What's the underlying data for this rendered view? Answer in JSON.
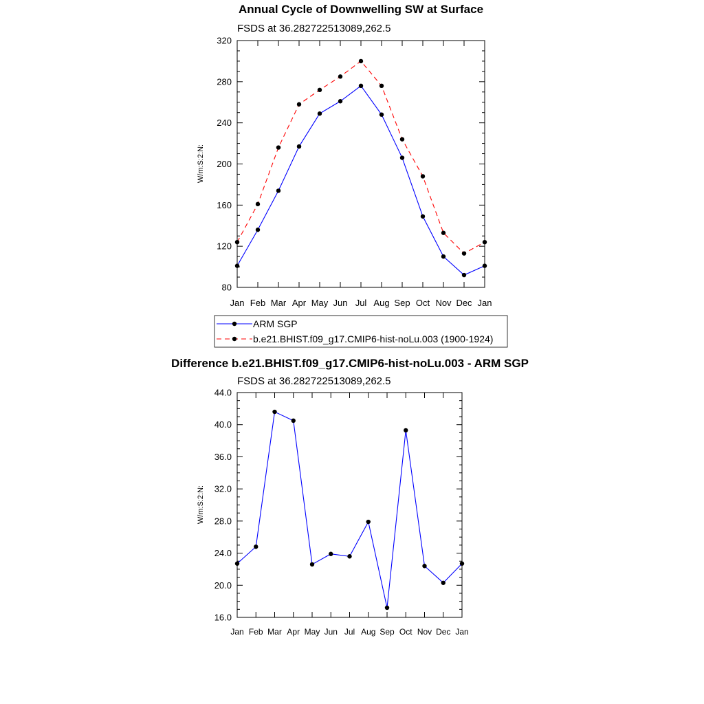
{
  "chart_data": [
    {
      "type": "line",
      "title": "Annual Cycle of Downwelling SW at Surface",
      "subtitle": "FSDS at 36.282722513089,262.5",
      "xlabel": "",
      "ylabel": "W/m:S:2:N:",
      "categories": [
        "Jan",
        "Feb",
        "Mar",
        "Apr",
        "May",
        "Jun",
        "Jul",
        "Aug",
        "Sep",
        "Oct",
        "Nov",
        "Dec",
        "Jan"
      ],
      "ylim": [
        80,
        320
      ],
      "yticks": [
        "80",
        "120",
        "160",
        "200",
        "240",
        "280",
        "320"
      ],
      "grid": false,
      "legend_position": "bottom",
      "series": [
        {
          "name": "ARM SGP",
          "color": "#0000ff",
          "dash": "solid",
          "values": [
            101,
            136,
            174,
            217,
            249,
            261,
            276,
            248,
            206,
            149,
            110,
            92,
            101
          ]
        },
        {
          "name": "b.e21.BHIST.f09_g17.CMIP6-hist-noLu.003 (1900-1924)",
          "color": "#ff0000",
          "dash": "dashed",
          "values": [
            124,
            161,
            216,
            258,
            272,
            285,
            300,
            276,
            224,
            188,
            133,
            113,
            124
          ]
        }
      ]
    },
    {
      "type": "line",
      "title": "Difference b.e21.BHIST.f09_g17.CMIP6-hist-noLu.003 - ARM SGP",
      "subtitle": "FSDS at 36.282722513089,262.5",
      "xlabel": "",
      "ylabel": "W/m:S:2:N:",
      "categories": [
        "Jan",
        "Feb",
        "Mar",
        "Apr",
        "May",
        "Jun",
        "Jul",
        "Aug",
        "Sep",
        "Oct",
        "Nov",
        "Dec",
        "Jan"
      ],
      "ylim": [
        16,
        44
      ],
      "yticks": [
        "16.0",
        "20.0",
        "24.0",
        "28.0",
        "32.0",
        "36.0",
        "40.0",
        "44.0"
      ],
      "grid": false,
      "series": [
        {
          "color": "#0000ff",
          "dash": "solid",
          "values": [
            22.7,
            24.8,
            41.6,
            40.5,
            22.6,
            23.9,
            23.6,
            27.9,
            17.2,
            39.3,
            22.4,
            20.3,
            22.7
          ]
        }
      ]
    }
  ]
}
